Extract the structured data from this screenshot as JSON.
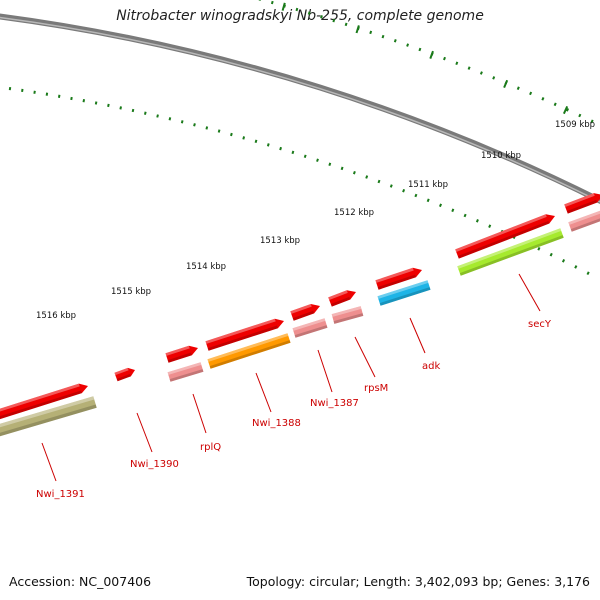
{
  "title": "Nitrobacter winogradskyi Nb-255, complete genome",
  "footer": {
    "accession": "Accession: NC_007406",
    "summary": "Topology: circular; Length: 3,402,093 bp; Genes: 3,176"
  },
  "scale_labels": [
    "1509 kbp",
    "1510 kbp",
    "1511 kbp",
    "1512 kbp",
    "1513 kbp",
    "1514 kbp",
    "1515 kbp",
    "1516 kbp"
  ],
  "gene_labels": [
    "secY",
    "adk",
    "rpsM",
    "Nwi_1387",
    "Nwi_1388",
    "rplQ",
    "Nwi_1390",
    "Nwi_1391"
  ],
  "colors": {
    "backbone": "#7a7a7a",
    "tick": "#1a7a1a",
    "gene_forward": "#ee0000",
    "label": "#cc0000",
    "pink": "#ee8f8f",
    "orange": "#ff9900",
    "cyan": "#1eb4e6",
    "lime": "#a6ea2e",
    "olive": "#b5b076"
  }
}
